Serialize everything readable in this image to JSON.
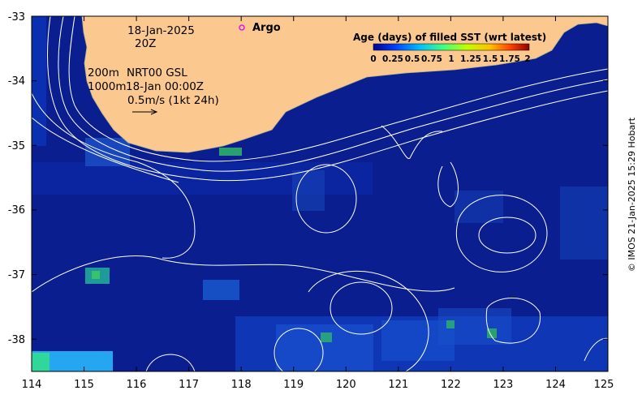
{
  "chart_data": {
    "type": "heatmap",
    "xlim": [
      114,
      125
    ],
    "ylim": [
      -38.5,
      -33
    ],
    "x_ticks": [
      "114",
      "115",
      "116",
      "117",
      "118",
      "119",
      "120",
      "121",
      "122",
      "123",
      "124",
      "125"
    ],
    "y_ticks": [
      "-33",
      "-34",
      "-35",
      "-36",
      "-37",
      "-38"
    ],
    "colorbar": {
      "title": "Age (days) of filled SST (wrt latest)",
      "ticks": [
        "0",
        "0.25",
        "0.5",
        "0.75",
        "1",
        "1.25",
        "1.5",
        "1.75",
        "2"
      ],
      "range": [
        0,
        2
      ],
      "colors": [
        "#00008f",
        "#0040ff",
        "#00c0ff",
        "#40ff80",
        "#c0ff00",
        "#ffc000",
        "#ff4000",
        "#8f0000"
      ]
    },
    "land_color": "#fbc98f",
    "ocean_color": "#0b1e8f"
  },
  "annotations": {
    "date": "18-Jan-2025",
    "time": "20Z",
    "legend_argo": "Argo",
    "contour_200": "200m",
    "contour_1000": "1000m",
    "nrt": "NRT00 GSL",
    "nrt_time": "18-Jan 00:00Z",
    "scale": "0.5m/s (1kt 24h)",
    "argo_marker_color": "#e020e0"
  },
  "credit": "© IMOS 21-Jan-2025 15:29 Hobart"
}
